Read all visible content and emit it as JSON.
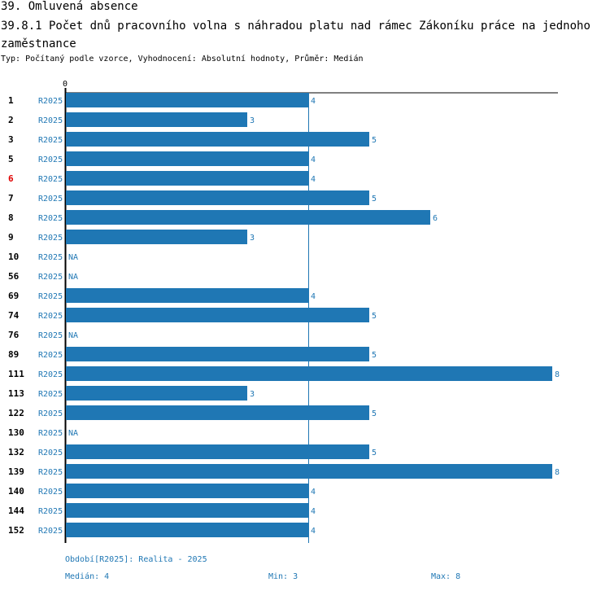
{
  "header": {
    "section": "39. Omluvená absence",
    "question": "39.8.1 Počet dnů pracovního volna s náhradou platu nad rámec Zákoníku práce na jednoho zaměstnance",
    "subtitle": "Typ: Počítaný podle vzorce, Vyhodnocení: Absolutní hodnoty, Průměr: Medián"
  },
  "chart_data": {
    "type": "bar",
    "orientation": "horizontal",
    "axis_zero_label": "0",
    "xlim": [
      0,
      8
    ],
    "median": 4,
    "series_label": "R2025",
    "categories": [
      "1",
      "2",
      "3",
      "5",
      "6",
      "7",
      "8",
      "9",
      "10",
      "56",
      "69",
      "74",
      "76",
      "89",
      "111",
      "113",
      "122",
      "130",
      "132",
      "139",
      "140",
      "144",
      "152"
    ],
    "values": [
      4,
      3,
      5,
      4,
      4,
      5,
      6,
      3,
      null,
      null,
      4,
      5,
      null,
      5,
      8,
      3,
      5,
      null,
      5,
      8,
      4,
      4,
      4
    ],
    "highlight_category": "6",
    "na_label": "NA",
    "colors": {
      "bar": "#1f77b4",
      "highlight": "#e00000",
      "text": "#000000"
    }
  },
  "footer": {
    "period": "Období[R2025]: Realita - 2025",
    "median": "Medián: 4",
    "min": "Min: 3",
    "max": "Max: 8"
  }
}
